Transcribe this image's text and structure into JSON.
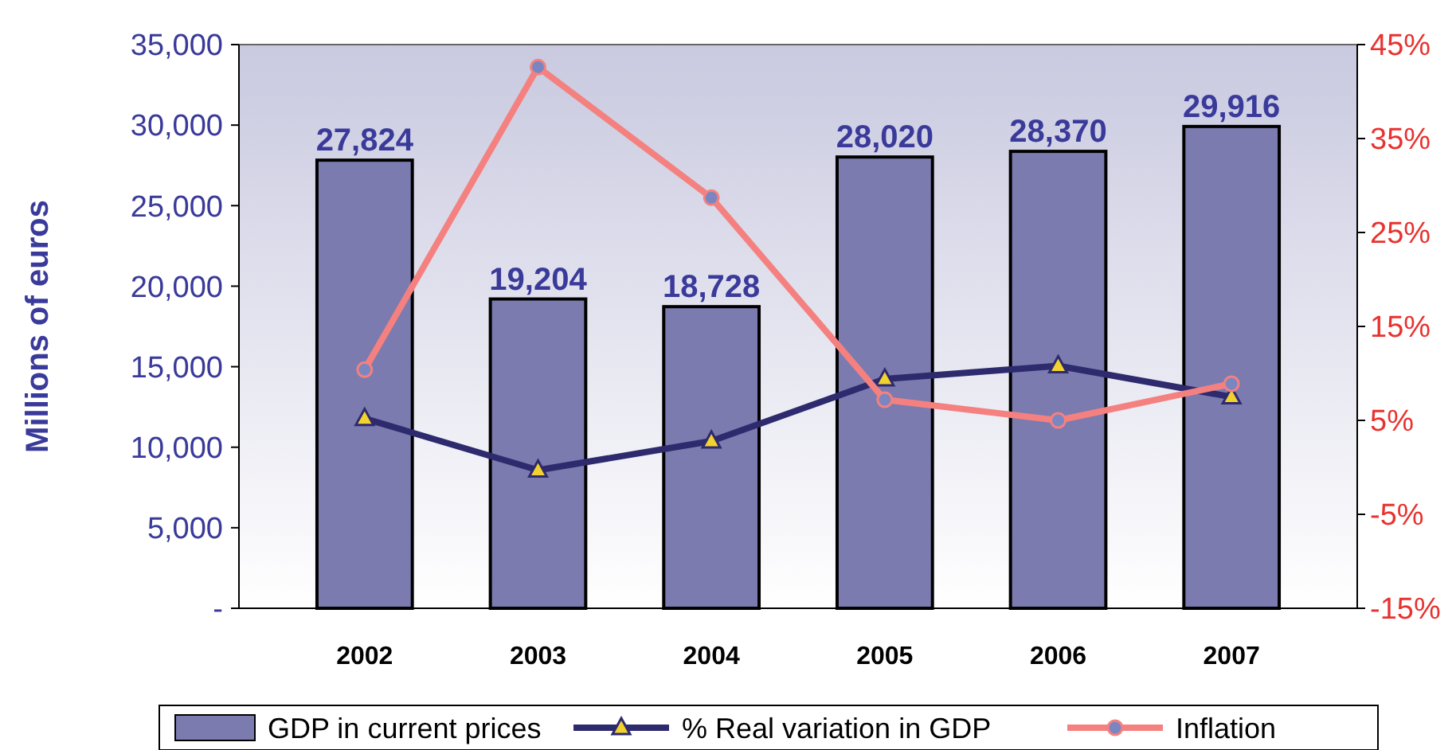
{
  "chart_data": {
    "type": "bar",
    "ylabel": "Millions of euros",
    "categories": [
      "2002",
      "2003",
      "2004",
      "2005",
      "2006",
      "2007"
    ],
    "series": [
      {
        "name": "GDP in current prices",
        "color": "#7b7bb0",
        "values": [
          27824,
          19204,
          18728,
          28020,
          28370,
          29916
        ],
        "value_labels": [
          "27,824",
          "19,204",
          "18,728",
          "28,020",
          "28,370",
          "29,916"
        ]
      },
      {
        "name": "% Real variation in GDP",
        "type": "line",
        "axis": "y2",
        "color": "#2e2a6e",
        "marker": "triangle",
        "values": [
          5.2,
          -0.3,
          2.8,
          9.4,
          10.8,
          7.5
        ]
      },
      {
        "name": "Inflation",
        "type": "line",
        "axis": "y2",
        "color": "#f4817f",
        "marker": "circle",
        "values": [
          10.4,
          42.6,
          28.7,
          7.2,
          5.0,
          8.9
        ]
      }
    ],
    "ylim": [
      0,
      35000
    ],
    "yticks": [
      {
        "value": 0,
        "label": "-"
      },
      {
        "value": 5000,
        "label": "5,000"
      },
      {
        "value": 10000,
        "label": "10,000"
      },
      {
        "value": 15000,
        "label": "15,000"
      },
      {
        "value": 20000,
        "label": "20,000"
      },
      {
        "value": 25000,
        "label": "25,000"
      },
      {
        "value": 30000,
        "label": "30,000"
      },
      {
        "value": 35000,
        "label": "35,000"
      }
    ],
    "y2lim": [
      -15,
      45
    ],
    "y2ticks": [
      {
        "value": -15,
        "label": "-15%"
      },
      {
        "value": -5,
        "label": "-5%"
      },
      {
        "value": 5,
        "label": "5%"
      },
      {
        "value": 15,
        "label": "15%"
      },
      {
        "value": 25,
        "label": "25%"
      },
      {
        "value": 35,
        "label": "35%"
      },
      {
        "value": 45,
        "label": "45%"
      }
    ],
    "grid": false,
    "legend": "bottom"
  }
}
